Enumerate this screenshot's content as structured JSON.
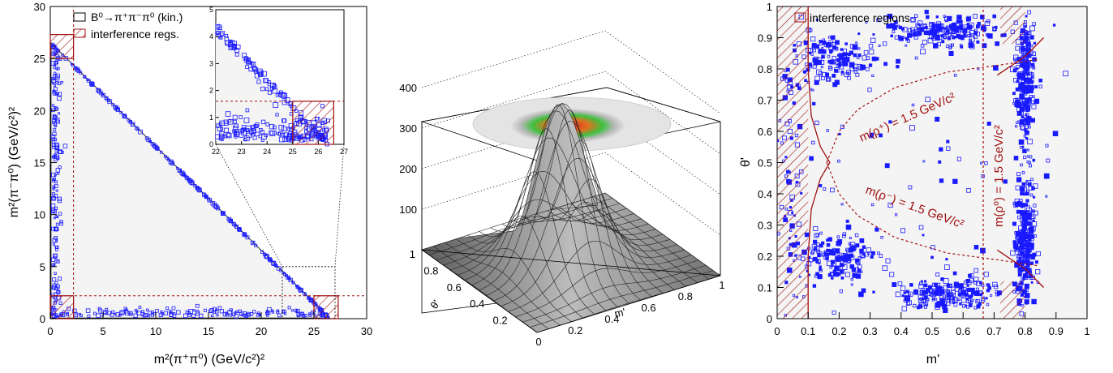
{
  "colors": {
    "points": "#1a1aff",
    "interference": "#a01010",
    "region_fill": "#f4f4f4",
    "surface": "#9a9a9a"
  },
  "chart_data": [
    {
      "type": "scatter",
      "id": "dalitz",
      "xlabel": "m²(π⁺π⁰) (GeV/c²)²",
      "ylabel": "m²(π⁻π⁰) (GeV/c²)²",
      "xlim": [
        0,
        30
      ],
      "ylim": [
        0,
        30
      ],
      "xticks": [
        "0",
        "5",
        "10",
        "15",
        "20",
        "25",
        "30"
      ],
      "yticks": [
        "0",
        "5",
        "10",
        "15",
        "20",
        "25",
        "30"
      ],
      "legend": [
        {
          "label": "B⁰→π⁺π⁻π⁰ (kin.)",
          "style": "open-box"
        },
        {
          "label": "interference regs.",
          "style": "hatched"
        }
      ],
      "legend_position": "top-left",
      "kinematic_corners": [
        [
          0.07,
          26.5
        ],
        [
          0.07,
          0.07
        ],
        [
          26.5,
          0.07
        ]
      ],
      "dashed_lines": {
        "x": 2.2,
        "y": 2.2
      },
      "interference_regions": [
        {
          "x": [
            0,
            2.2
          ],
          "y": [
            25,
            27.3
          ]
        },
        {
          "x": [
            0,
            2.2
          ],
          "y": [
            0,
            2.2
          ]
        },
        {
          "x": [
            25,
            27.3
          ],
          "y": [
            0,
            2.2
          ]
        }
      ],
      "inset": {
        "xlim": [
          22,
          27
        ],
        "ylim": [
          0,
          5
        ],
        "xticks": [
          "22",
          "23",
          "24",
          "25",
          "26",
          "27"
        ],
        "yticks": [
          "0",
          "1",
          "2",
          "3",
          "4",
          "5"
        ],
        "zoom_box": {
          "x": [
            22,
            27
          ],
          "y": [
            0,
            5
          ]
        },
        "interference_box": {
          "x": [
            25,
            26.6
          ],
          "y": [
            0,
            1.6
          ]
        },
        "dashed_y": 1.6
      }
    },
    {
      "type": "surface3d",
      "id": "square-dalitz-surface",
      "xlabel": "m'",
      "ylabel": "θ'",
      "zticks": [
        "100",
        "200",
        "300",
        "400"
      ],
      "xticks": [
        "0",
        "0.2",
        "0.4",
        "0.6",
        "0.8",
        "1"
      ],
      "yticks": [
        "0.2",
        "0.4",
        "0.6",
        "0.8",
        "1"
      ],
      "zlim": [
        0,
        420
      ],
      "peak": {
        "x": 0.45,
        "y": 0.5,
        "z": 400
      }
    },
    {
      "type": "scatter",
      "id": "square-dalitz",
      "xlabel": "m'",
      "ylabel": "θ'",
      "xlim": [
        0,
        1
      ],
      "ylim": [
        0,
        1
      ],
      "xticks": [
        "0",
        "0.1",
        "0.2",
        "0.3",
        "0.4",
        "0.5",
        "0.6",
        "0.7",
        "0.8",
        "0.9",
        "1"
      ],
      "yticks": [
        "0",
        "0.1",
        "0.2",
        "0.3",
        "0.4",
        "0.5",
        "0.6",
        "0.7",
        "0.8",
        "0.9",
        "1"
      ],
      "legend": [
        {
          "label": "interference regions",
          "style": "hatched"
        }
      ],
      "legend_position": "top-left",
      "curves": [
        {
          "label": "m(ρ⁺) = 1.5 GeV/c²",
          "points": [
            [
              0.16,
              0.5
            ],
            [
              0.2,
              0.6
            ],
            [
              0.26,
              0.67
            ],
            [
              0.38,
              0.74
            ],
            [
              0.55,
              0.79
            ],
            [
              0.7,
              0.81
            ],
            [
              0.84,
              0.83
            ]
          ]
        },
        {
          "label": "m(ρ⁻) = 1.5 GeV/c²",
          "points": [
            [
              0.16,
              0.5
            ],
            [
              0.2,
              0.4
            ],
            [
              0.26,
              0.33
            ],
            [
              0.38,
              0.26
            ],
            [
              0.55,
              0.21
            ],
            [
              0.7,
              0.19
            ],
            [
              0.84,
              0.17
            ]
          ]
        },
        {
          "label": "m(ρ⁰) = 1.5 GeV/c²",
          "vertical_x": 0.665
        }
      ],
      "solid_curves": [
        [
          [
            0.1,
            0.0
          ],
          [
            0.1,
            0.2
          ],
          [
            0.11,
            0.35
          ],
          [
            0.14,
            0.45
          ],
          [
            0.17,
            0.5
          ],
          [
            0.14,
            0.55
          ],
          [
            0.11,
            0.65
          ],
          [
            0.1,
            0.8
          ],
          [
            0.1,
            1.0
          ]
        ],
        [
          [
            0.71,
            0.78
          ],
          [
            0.8,
            0.84
          ],
          [
            0.86,
            0.9
          ]
        ],
        [
          [
            0.71,
            0.22
          ],
          [
            0.8,
            0.16
          ],
          [
            0.86,
            0.1
          ]
        ]
      ],
      "interference_regions": [
        {
          "x": [
            0.0,
            0.1
          ],
          "y": [
            0.0,
            1.0
          ]
        },
        {
          "x": [
            0.72,
            0.8
          ],
          "y": [
            0.0,
            0.12
          ]
        },
        {
          "x": [
            0.72,
            0.8
          ],
          "y": [
            0.88,
            1.0
          ]
        }
      ],
      "clusters": [
        {
          "cx": 0.8,
          "cy": 0.75,
          "sx": 0.015,
          "sy": 0.1,
          "n": 260
        },
        {
          "cx": 0.8,
          "cy": 0.25,
          "sx": 0.015,
          "sy": 0.1,
          "n": 260
        },
        {
          "cx": 0.55,
          "cy": 0.08,
          "sx": 0.09,
          "sy": 0.025,
          "n": 200
        },
        {
          "cx": 0.55,
          "cy": 0.92,
          "sx": 0.09,
          "sy": 0.025,
          "n": 200
        },
        {
          "cx": 0.19,
          "cy": 0.83,
          "sx": 0.06,
          "sy": 0.04,
          "n": 150
        },
        {
          "cx": 0.19,
          "cy": 0.2,
          "sx": 0.06,
          "sy": 0.04,
          "n": 150
        },
        {
          "cx": 0.05,
          "cy": 0.5,
          "sx": 0.03,
          "sy": 0.3,
          "n": 80
        },
        {
          "cx": 0.5,
          "cy": 0.5,
          "sx": 0.3,
          "sy": 0.3,
          "n": 120
        }
      ]
    }
  ]
}
